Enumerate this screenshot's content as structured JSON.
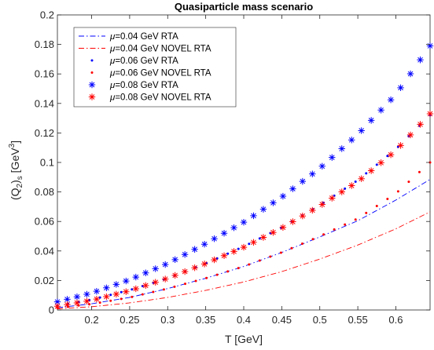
{
  "chart_data": {
    "type": "scatter",
    "title": "Quasiparticle mass scenario",
    "xlabel": "T [GeV]",
    "ylabel_main": "(Q",
    "ylabel_sub1": "2",
    "ylabel_mid": ")",
    "ylabel_sub2": "s",
    "ylabel_unit": " [GeV",
    "ylabel_sup": "3",
    "ylabel_end": "]",
    "xlim": [
      0.155,
      0.645
    ],
    "ylim": [
      0,
      0.2
    ],
    "xticks": [
      "0.2",
      "0.25",
      "0.3",
      "0.35",
      "0.4",
      "0.45",
      "0.5",
      "0.55",
      "0.6"
    ],
    "xtick_values": [
      0.2,
      0.25,
      0.3,
      0.35,
      0.4,
      0.45,
      0.5,
      0.55,
      0.6
    ],
    "yticks": [
      "0",
      "0.02",
      "0.04",
      "0.06",
      "0.08",
      "0.1",
      "0.12",
      "0.14",
      "0.16",
      "0.18",
      "0.2"
    ],
    "ytick_values": [
      0,
      0.02,
      0.04,
      0.06,
      0.08,
      0.1,
      0.12,
      0.14,
      0.16,
      0.18,
      0.2
    ],
    "grid": false,
    "legend_position": "top-left",
    "series": [
      {
        "mu_label": "μ",
        "name": "=0.04 GeV RTA",
        "color": "#0000ff",
        "style": "dashdot",
        "x": [
          0.155,
          0.2,
          0.25,
          0.3,
          0.35,
          0.4,
          0.45,
          0.5,
          0.55,
          0.6,
          0.645
        ],
        "y": [
          0.0015,
          0.0042,
          0.0085,
          0.0145,
          0.0215,
          0.0295,
          0.039,
          0.0495,
          0.0605,
          0.0745,
          0.0885
        ]
      },
      {
        "mu_label": "μ",
        "name": "=0.04 GeV NOVEL RTA",
        "color": "#ff0000",
        "style": "dashdot",
        "x": [
          0.155,
          0.2,
          0.25,
          0.3,
          0.35,
          0.4,
          0.45,
          0.5,
          0.55,
          0.6,
          0.645
        ],
        "y": [
          0.0008,
          0.0022,
          0.0048,
          0.0085,
          0.0133,
          0.019,
          0.026,
          0.0345,
          0.044,
          0.055,
          0.0665
        ]
      },
      {
        "mu_label": "μ",
        "name": "=0.06 GeV RTA",
        "color": "#0000ff",
        "style": "dot",
        "x": [
          0.155,
          0.2,
          0.25,
          0.3,
          0.35,
          0.4,
          0.45,
          0.5,
          0.55,
          0.6,
          0.645
        ],
        "y": [
          0.003,
          0.007,
          0.0135,
          0.0215,
          0.0315,
          0.043,
          0.056,
          0.071,
          0.088,
          0.109,
          0.132
        ]
      },
      {
        "mu_label": "μ",
        "name": "=0.06 GeV NOVEL RTA",
        "color": "#ff0000",
        "style": "dot",
        "x": [
          0.155,
          0.2,
          0.25,
          0.3,
          0.35,
          0.4,
          0.45,
          0.5,
          0.55,
          0.6,
          0.645
        ],
        "y": [
          0.0015,
          0.004,
          0.0085,
          0.0145,
          0.0215,
          0.0295,
          0.039,
          0.05,
          0.062,
          0.079,
          0.1
        ]
      },
      {
        "mu_label": "μ",
        "name": "=0.08 GeV RTA",
        "color": "#0000ff",
        "style": "star",
        "x": [
          0.155,
          0.2,
          0.25,
          0.3,
          0.35,
          0.4,
          0.45,
          0.5,
          0.55,
          0.6,
          0.645
        ],
        "y": [
          0.0055,
          0.0115,
          0.0205,
          0.0315,
          0.045,
          0.0595,
          0.0765,
          0.096,
          0.119,
          0.146,
          0.179
        ]
      },
      {
        "mu_label": "μ",
        "name": "=0.08 GeV NOVEL RTA",
        "color": "#ff0000",
        "style": "star",
        "x": [
          0.155,
          0.2,
          0.25,
          0.3,
          0.35,
          0.4,
          0.45,
          0.5,
          0.55,
          0.6,
          0.645
        ],
        "y": [
          0.0025,
          0.0065,
          0.013,
          0.0215,
          0.0315,
          0.0425,
          0.0555,
          0.0705,
          0.087,
          0.108,
          0.133
        ]
      }
    ]
  }
}
